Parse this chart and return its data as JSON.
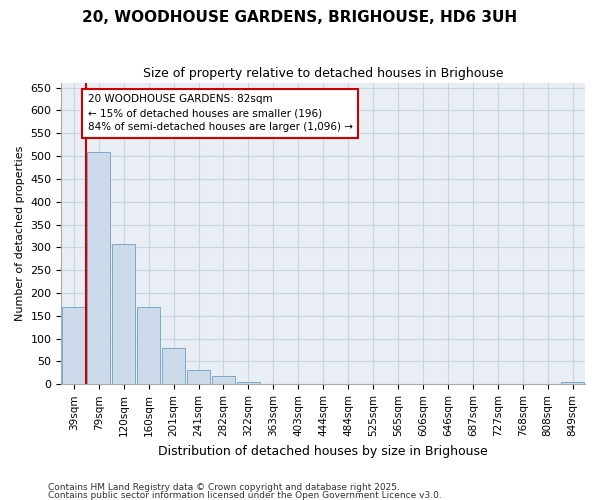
{
  "title": "20, WOODHOUSE GARDENS, BRIGHOUSE, HD6 3UH",
  "subtitle": "Size of property relative to detached houses in Brighouse",
  "xlabel": "Distribution of detached houses by size in Brighouse",
  "ylabel": "Number of detached properties",
  "categories": [
    "39sqm",
    "79sqm",
    "120sqm",
    "160sqm",
    "201sqm",
    "241sqm",
    "282sqm",
    "322sqm",
    "363sqm",
    "403sqm",
    "444sqm",
    "484sqm",
    "525sqm",
    "565sqm",
    "606sqm",
    "646sqm",
    "687sqm",
    "727sqm",
    "768sqm",
    "808sqm",
    "849sqm"
  ],
  "values": [
    170,
    510,
    308,
    170,
    80,
    32,
    18,
    5,
    1,
    0,
    0,
    0,
    0,
    0,
    0,
    0,
    0,
    0,
    0,
    0,
    4
  ],
  "bar_color": "#ccdaea",
  "bar_edge_color": "#7aaac8",
  "marker_line_color": "#cc0000",
  "annotation_box_color": "#cc0000",
  "annotation_text_line1": "20 WOODHOUSE GARDENS: 82sqm",
  "annotation_text_line2": "← 15% of detached houses are smaller (196)",
  "annotation_text_line3": "84% of semi-detached houses are larger (1,096) →",
  "ylim": [
    0,
    660
  ],
  "yticks": [
    0,
    50,
    100,
    150,
    200,
    250,
    300,
    350,
    400,
    450,
    500,
    550,
    600,
    650
  ],
  "grid_color": "#c8d4e0",
  "plot_bg_color": "#e8eef4",
  "fig_bg_color": "#ffffff",
  "footnote1": "Contains HM Land Registry data © Crown copyright and database right 2025.",
  "footnote2": "Contains public sector information licensed under the Open Government Licence v3.0.",
  "title_fontsize": 11,
  "subtitle_fontsize": 9,
  "ylabel_fontsize": 8,
  "xlabel_fontsize": 9,
  "ytick_fontsize": 8,
  "xtick_fontsize": 7.5,
  "footnote_fontsize": 6.5
}
